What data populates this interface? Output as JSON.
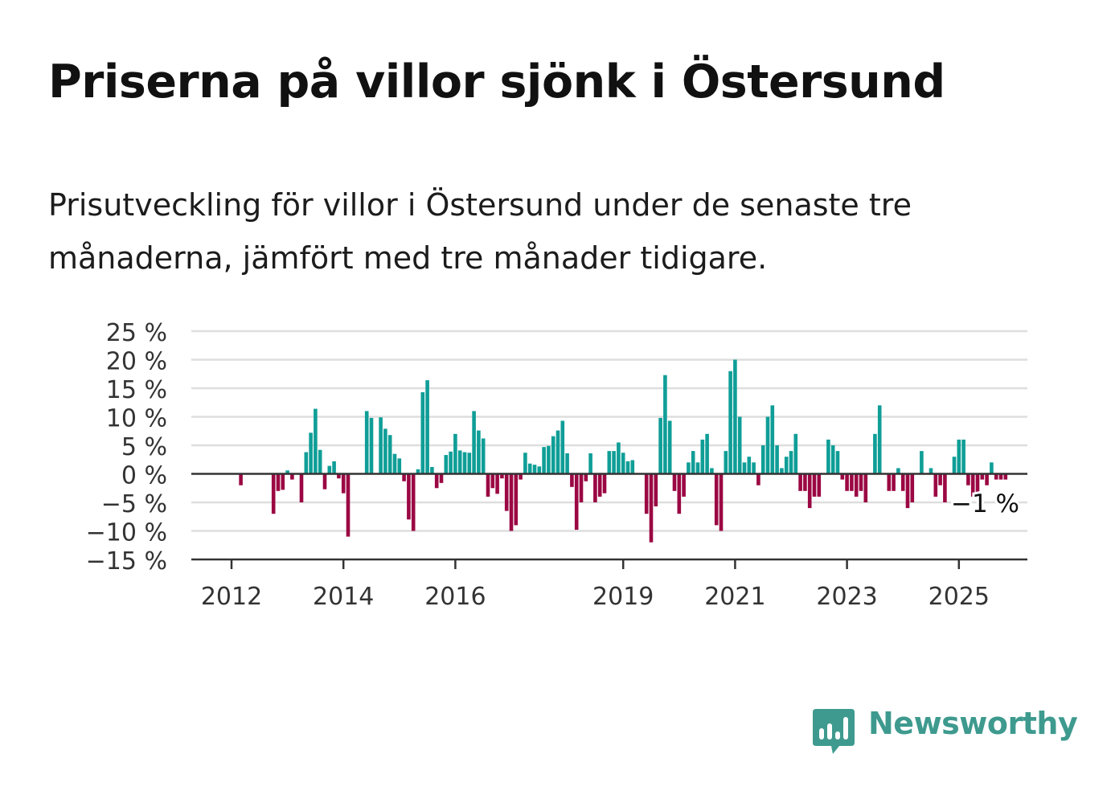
{
  "title": "Priserna på villor sjönk i Östersund",
  "subtitle": "Prisutveckling för villor i Östersund under de senaste tre månaderna, jämfört med tre månader tidigare.",
  "brand": {
    "name": "Newsworthy",
    "icon": "bar-chart-speech-bubble-icon",
    "color": "#3e9a8e"
  },
  "colors": {
    "positive": "#0f9e97",
    "negative": "#9b0743",
    "grid": "#dedede",
    "axis": "#333333"
  },
  "chart_data": {
    "type": "bar",
    "title": "",
    "xlabel": "",
    "ylabel": "",
    "ylim": [
      -15,
      25
    ],
    "y_ticks": [
      "25 %",
      "20 %",
      "15 %",
      "10 %",
      "5 %",
      "0 %",
      "−5 %",
      "−10 %",
      "−15 %"
    ],
    "y_tick_values": [
      25,
      20,
      15,
      10,
      5,
      0,
      -5,
      -10,
      -15
    ],
    "x_ticks": [
      "2012",
      "2014",
      "2016",
      "2019",
      "2021",
      "2023",
      "2025"
    ],
    "x_tick_values": [
      "2012-01",
      "2014-01",
      "2016-01",
      "2019-01",
      "2021-01",
      "2023-01",
      "2025-01"
    ],
    "start_month": "2011-07",
    "grid": true,
    "annotation": "−1 %",
    "values": [
      0,
      0,
      0,
      0,
      0,
      0,
      0,
      0,
      -2,
      0,
      0,
      0,
      0,
      0,
      0,
      -7,
      -3,
      -2.8,
      0.6,
      -1,
      0,
      -5,
      3.8,
      7.2,
      11.4,
      4.2,
      -2.7,
      1.4,
      2.2,
      -0.8,
      -3.4,
      -11,
      0,
      0,
      0,
      11,
      9.8,
      0,
      9.9,
      7.9,
      6.8,
      3.5,
      2.7,
      -1.3,
      -8,
      -10,
      0.8,
      14.3,
      16.4,
      1.2,
      -2.5,
      -1.6,
      3.3,
      3.9,
      7,
      4.1,
      3.8,
      3.7,
      11,
      7.6,
      6.2,
      -4,
      -2.5,
      -3.5,
      -0.8,
      -6.5,
      -10,
      -9,
      -1,
      3.7,
      1.8,
      1.6,
      1.3,
      4.7,
      4.9,
      6.6,
      7.6,
      9.3,
      3.6,
      -2.3,
      -9.8,
      -5,
      -1.3,
      3.6,
      -5,
      -4,
      -3.4,
      4,
      4,
      5.5,
      3.7,
      2.2,
      2.4,
      0,
      0,
      -7,
      -12,
      -5.7,
      9.8,
      17.3,
      9.3,
      -3,
      -7,
      -4,
      2,
      4,
      2,
      6,
      7,
      1,
      -9,
      -10,
      4,
      18,
      20,
      10,
      2,
      3,
      2,
      -2,
      5,
      10,
      12,
      5,
      1,
      3,
      4,
      7,
      -3,
      -3,
      -6,
      -4,
      -4,
      0,
      6,
      5,
      4,
      -1,
      -3,
      -3,
      -4,
      -3,
      -5,
      0,
      7,
      12,
      0,
      -3,
      -3,
      1,
      -3,
      -6,
      -5,
      0,
      4,
      0,
      1,
      -4,
      -2,
      -5,
      0,
      3,
      6,
      6,
      -2,
      -4,
      -4,
      -1,
      -2,
      2,
      -1,
      -1,
      -1
    ]
  }
}
